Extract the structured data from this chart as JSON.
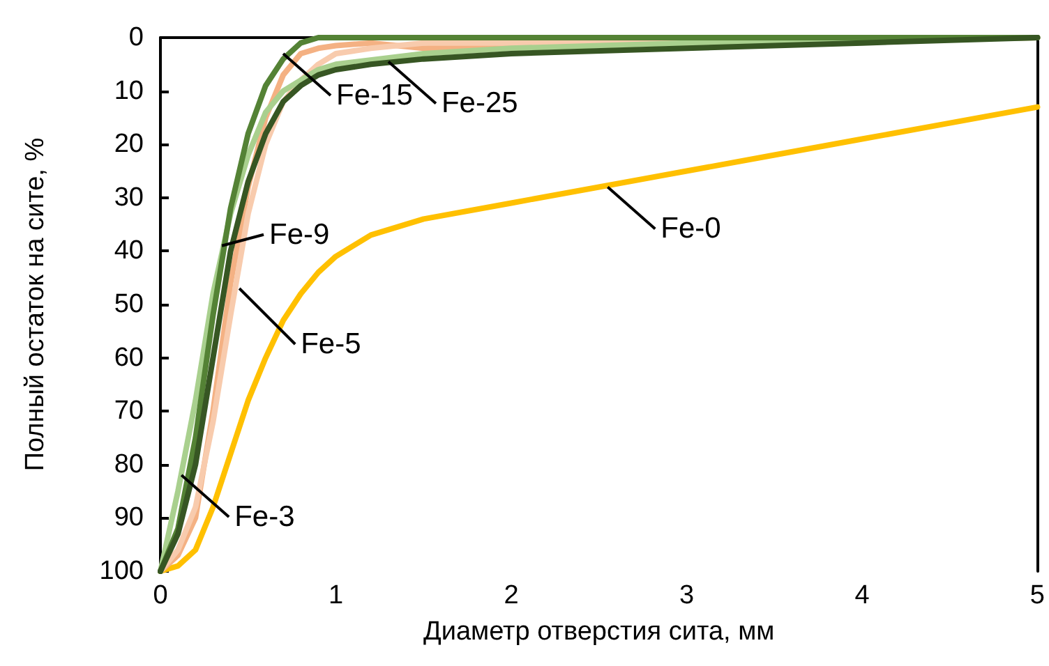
{
  "chart_data": {
    "type": "line",
    "xlabel": "Диаметр отверстия сита, мм",
    "ylabel": "Полный остаток на сите, %",
    "xlim": [
      0,
      5
    ],
    "xticks": [
      0,
      1,
      2,
      3,
      4,
      5
    ],
    "ylim": [
      100,
      0
    ],
    "yticks": [
      0,
      10,
      20,
      30,
      40,
      50,
      60,
      70,
      80,
      90,
      100
    ],
    "grid": false,
    "marker": "none",
    "line_style": "solid",
    "series": [
      {
        "color": "#ffc000",
        "x": [
          0,
          0.1,
          0.2,
          0.3,
          0.4,
          0.5,
          0.6,
          0.7,
          0.8,
          0.9,
          1,
          1.2,
          1.5,
          2,
          2.5,
          3,
          3.5,
          4,
          4.5,
          5
        ],
        "values": [
          100,
          99,
          96,
          88,
          78,
          68,
          60,
          53,
          48,
          44,
          41,
          37,
          34,
          31,
          28,
          25,
          22,
          19,
          16,
          13
        ]
      },
      {
        "color": "#f4b183",
        "x": [
          0,
          0.1,
          0.2,
          0.3,
          0.4,
          0.5,
          0.6,
          0.7,
          0.8,
          0.9,
          1,
          1.2,
          1.5,
          2,
          5
        ],
        "values": [
          100,
          97,
          90,
          70,
          46,
          28,
          15,
          7,
          3,
          2,
          1.5,
          1,
          2,
          1.5,
          0
        ]
      },
      {
        "color": "#f8cbad",
        "x": [
          0,
          0.1,
          0.2,
          0.3,
          0.4,
          0.5,
          0.6,
          0.7,
          0.8,
          0.9,
          1,
          1.2,
          1.5,
          2,
          5
        ],
        "values": [
          100,
          96,
          88,
          72,
          52,
          33,
          20,
          12,
          8,
          5,
          3,
          2,
          1,
          1,
          0
        ]
      },
      {
        "color": "#a9d08e",
        "x": [
          0,
          0.1,
          0.2,
          0.3,
          0.4,
          0.5,
          0.6,
          0.7,
          0.8,
          0.9,
          1,
          1.5,
          2,
          3,
          5
        ],
        "values": [
          100,
          85,
          68,
          48,
          33,
          22,
          14,
          10,
          8,
          6,
          5,
          3,
          2,
          1,
          0
        ]
      },
      {
        "color": "#548235",
        "x": [
          0,
          0.1,
          0.2,
          0.3,
          0.4,
          0.5,
          0.6,
          0.7,
          0.8,
          0.9,
          5
        ],
        "values": [
          100,
          92,
          75,
          52,
          32,
          18,
          9,
          4,
          1,
          0,
          0
        ]
      },
      {
        "color": "#375623",
        "x": [
          0,
          0.1,
          0.2,
          0.3,
          0.4,
          0.5,
          0.6,
          0.7,
          0.8,
          0.9,
          1,
          1.2,
          1.5,
          2,
          3,
          4,
          5
        ],
        "values": [
          100,
          93,
          80,
          60,
          40,
          27,
          18,
          12,
          9,
          7,
          6,
          5,
          4,
          3,
          2,
          1,
          0
        ]
      }
    ],
    "annotations": [
      {
        "text": "Fe-25",
        "x": 1.3,
        "y": 4.5
      },
      {
        "text": "Fe-15",
        "x": 0.7,
        "y": 3
      },
      {
        "text": "Fe-9",
        "x": 0.35,
        "y": 39
      },
      {
        "text": "Fe-5",
        "x": 0.45,
        "y": 47
      },
      {
        "text": "Fe-3",
        "x": 0.12,
        "y": 82
      },
      {
        "text": "Fe-0",
        "x": 2.55,
        "y": 28
      }
    ]
  }
}
